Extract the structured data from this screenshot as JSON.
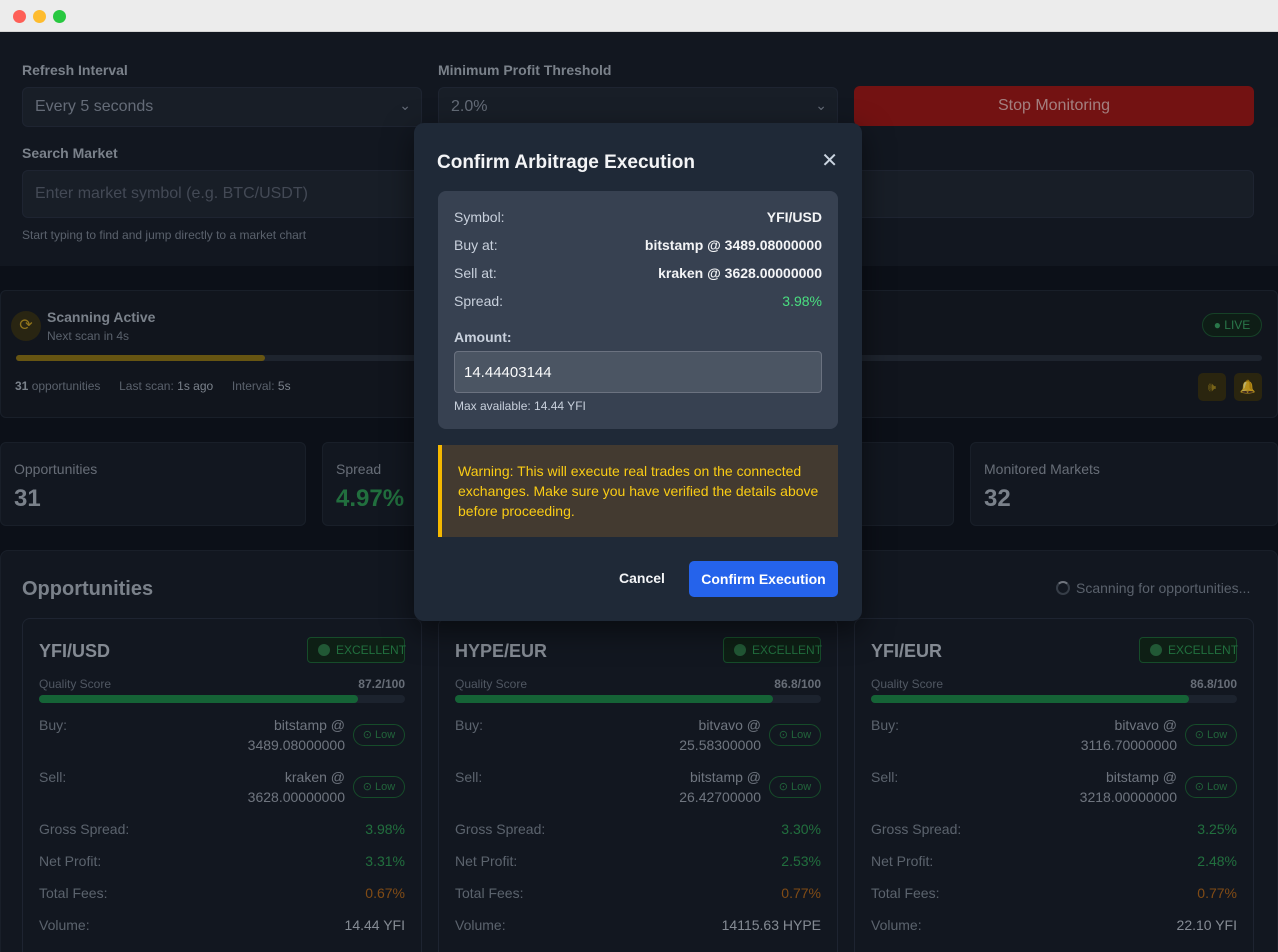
{
  "window": {
    "title": ""
  },
  "controls": {
    "refresh_label": "Refresh Interval",
    "refresh_value": "Every 5 seconds",
    "threshold_label": "Minimum Profit Threshold",
    "threshold_value": "2.0%",
    "stop_button": "Stop Monitoring",
    "search_label": "Search Market",
    "search_placeholder": "Enter market symbol (e.g. BTC/USDT)",
    "search_hint": "Start typing to find and jump directly to a market chart"
  },
  "scanner": {
    "title": "Scanning Active",
    "next_scan": "Next scan in 4s",
    "progress": 0.2,
    "opp_count": "31",
    "opp_label": "opportunities",
    "last_scan_label": "Last scan:",
    "last_scan_value": "1s ago",
    "interval_label": "Interval:",
    "interval_value": "5s",
    "live_badge": "● LIVE",
    "sound_icon": "speaker-icon",
    "bell_icon": "bell-icon"
  },
  "stats": [
    {
      "title": "Opportunities",
      "value": "31"
    },
    {
      "title": "Spread",
      "value": "4.97%"
    },
    {
      "title": "Monitored Markets",
      "value": "32"
    }
  ],
  "opportunities": {
    "title": "Opportunities",
    "scanning_text": "Scanning for opportunities...",
    "cards": [
      {
        "symbol": "YFI/USD",
        "badge": "EXCELLENT",
        "quality_label": "Quality Score",
        "quality_value": "87.2/100",
        "quality": 87.2,
        "buy_label": "Buy:",
        "buy_ex": "bitstamp @",
        "buy_price": "3489.08000000",
        "buy_risk": "Low",
        "sell_label": "Sell:",
        "sell_ex": "kraken @",
        "sell_price": "3628.00000000",
        "sell_risk": "Low",
        "gross_label": "Gross Spread:",
        "gross": "3.98%",
        "net_label": "Net Profit:",
        "net": "3.31%",
        "fees_label": "Total Fees:",
        "fees": "0.67%",
        "volume_label": "Volume:",
        "volume": "14.44 YFI"
      },
      {
        "symbol": "HYPE/EUR",
        "badge": "EXCELLENT",
        "quality_label": "Quality Score",
        "quality_value": "86.8/100",
        "quality": 86.8,
        "buy_label": "Buy:",
        "buy_ex": "bitvavo @",
        "buy_price": "25.58300000",
        "buy_risk": "Low",
        "sell_label": "Sell:",
        "sell_ex": "bitstamp @",
        "sell_price": "26.42700000",
        "sell_risk": "Low",
        "gross_label": "Gross Spread:",
        "gross": "3.30%",
        "net_label": "Net Profit:",
        "net": "2.53%",
        "fees_label": "Total Fees:",
        "fees": "0.77%",
        "volume_label": "Volume:",
        "volume": "14115.63 HYPE"
      },
      {
        "symbol": "YFI/EUR",
        "badge": "EXCELLENT",
        "quality_label": "Quality Score",
        "quality_value": "86.8/100",
        "quality": 86.8,
        "buy_label": "Buy:",
        "buy_ex": "bitvavo @",
        "buy_price": "3116.70000000",
        "buy_risk": "Low",
        "sell_label": "Sell:",
        "sell_ex": "bitstamp @",
        "sell_price": "3218.00000000",
        "sell_risk": "Low",
        "gross_label": "Gross Spread:",
        "gross": "3.25%",
        "net_label": "Net Profit:",
        "net": "2.48%",
        "fees_label": "Total Fees:",
        "fees": "0.77%",
        "volume_label": "Volume:",
        "volume": "22.10 YFI"
      }
    ]
  },
  "modal": {
    "title": "Confirm Arbitrage Execution",
    "symbol_label": "Symbol:",
    "symbol_value": "YFI/USD",
    "buy_label": "Buy at:",
    "buy_value": "bitstamp @ 3489.08000000",
    "sell_label": "Sell at:",
    "sell_value": "kraken @ 3628.00000000",
    "spread_label": "Spread:",
    "spread_value": "3.98%",
    "amount_label": "Amount:",
    "amount_value": "14.44403144",
    "max_available": "Max available: 14.44 YFI",
    "warning": "Warning: This will execute real trades on the connected exchanges. Make sure you have verified the details above before proceeding.",
    "cancel": "Cancel",
    "confirm": "Confirm Execution"
  },
  "colors": {
    "accent": "#2563eb",
    "danger": "#a01a1a",
    "success": "#2f9a56",
    "warning": "#facc15"
  }
}
